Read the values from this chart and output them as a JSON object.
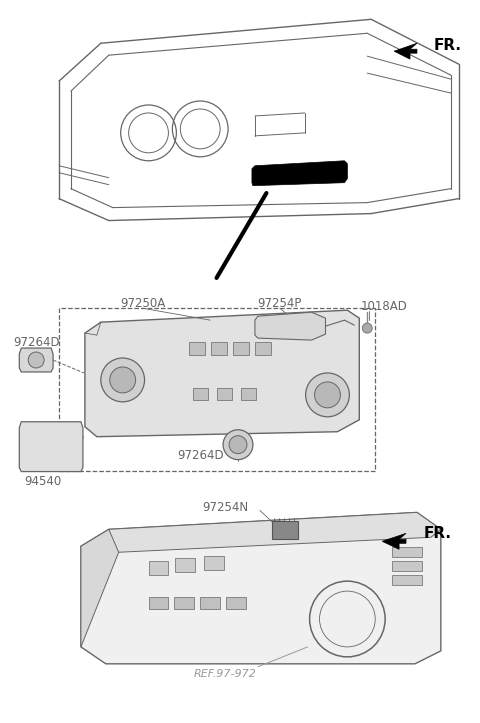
{
  "bg_color": "#ffffff",
  "line_color": "#666666",
  "fig_width": 4.8,
  "fig_height": 7.23,
  "labels": {
    "FR_top": "FR.",
    "label_97250A": "97250A",
    "label_1018AD": "1018AD",
    "label_97254P": "97254P",
    "label_97264D_left": "97264D",
    "label_97264D_bottom": "97264D",
    "label_94540": "94540",
    "label_97254N": "97254N",
    "label_FR_bottom": "FR.",
    "label_ref": "REF.97-972"
  }
}
